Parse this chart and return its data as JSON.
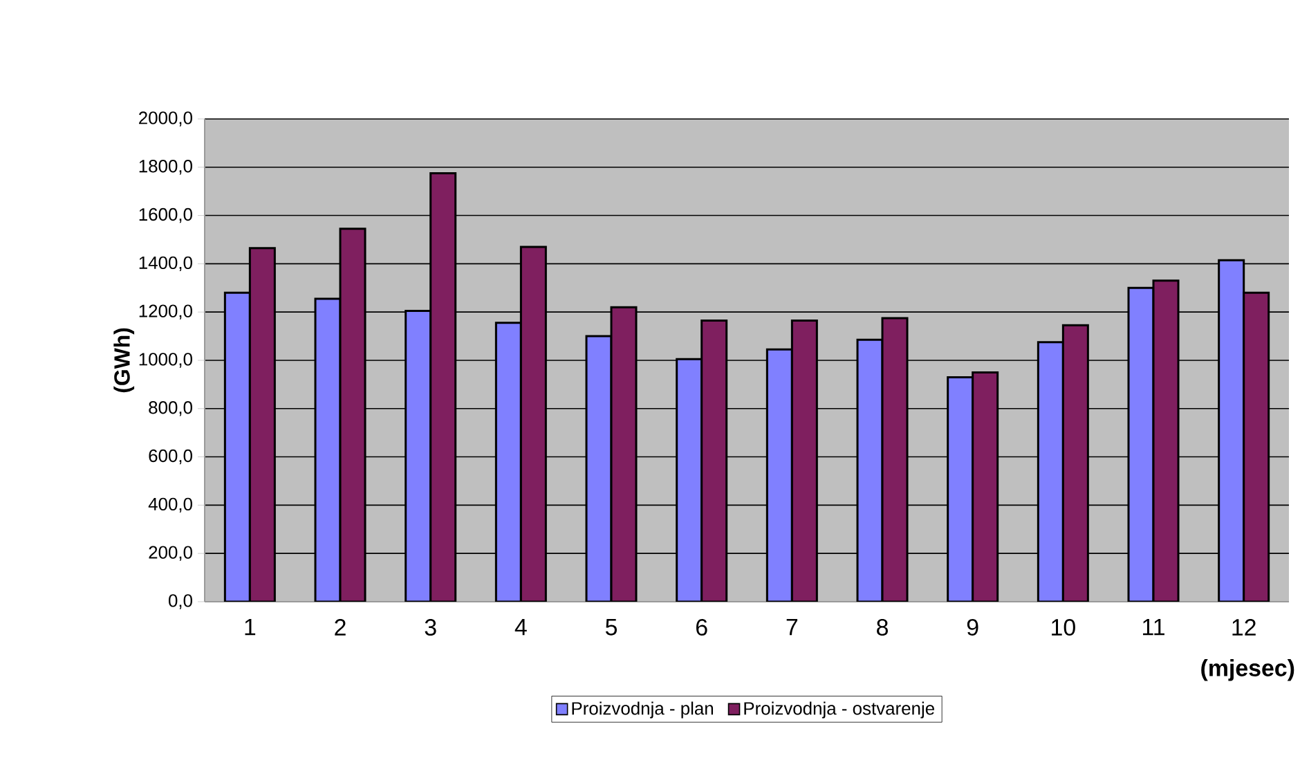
{
  "chart_data": {
    "type": "bar",
    "xlabel": "(mjesec)",
    "ylabel": "(GWh)",
    "categories": [
      "1",
      "2",
      "3",
      "4",
      "5",
      "6",
      "7",
      "8",
      "9",
      "10",
      "11",
      "12"
    ],
    "series": [
      {
        "name": "Proizvodnja - plan",
        "color": "#8080ff",
        "values": [
          1280,
          1255,
          1205,
          1155,
          1100,
          1005,
          1045,
          1085,
          930,
          1075,
          1300,
          1415
        ]
      },
      {
        "name": "Proizvodnja - ostvarenje",
        "color": "#7f1f5f",
        "values": [
          1465,
          1545,
          1775,
          1470,
          1220,
          1165,
          1165,
          1175,
          950,
          1145,
          1330,
          1280
        ]
      }
    ],
    "ylim": [
      0,
      2000
    ],
    "yticks": [
      {
        "value": 0,
        "label": "0,0"
      },
      {
        "value": 200,
        "label": "200,0"
      },
      {
        "value": 400,
        "label": "400,0"
      },
      {
        "value": 600,
        "label": "600,0"
      },
      {
        "value": 800,
        "label": "800,0"
      },
      {
        "value": 1000,
        "label": "1000,0"
      },
      {
        "value": 1200,
        "label": "1200,0"
      },
      {
        "value": 1400,
        "label": "1400,0"
      },
      {
        "value": 1600,
        "label": "1600,0"
      },
      {
        "value": 1800,
        "label": "1800,0"
      },
      {
        "value": 2000,
        "label": "2000,0"
      }
    ],
    "grid": "y",
    "legend": "bottom"
  }
}
